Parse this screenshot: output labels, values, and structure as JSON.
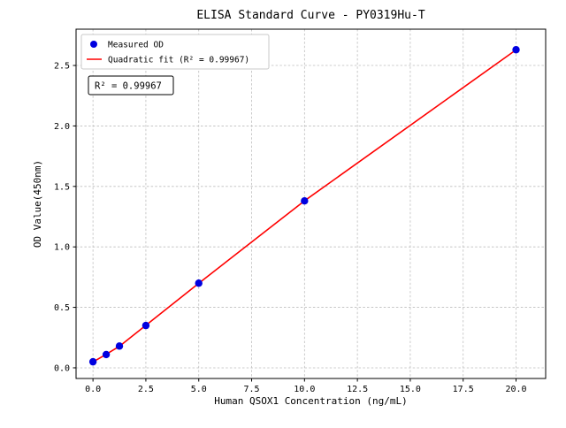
{
  "figure": {
    "background": "#ffffff",
    "axis_color": "#000000",
    "grid_color": "#bdbdbd"
  },
  "chart_data": {
    "type": "scatter",
    "title": "ELISA Standard Curve - PY0319Hu-T",
    "xlabel": "Human QSOX1 Concentration (ng/mL)",
    "ylabel": "OD Value(450nm)",
    "xlim": [
      -0.8,
      21.4
    ],
    "ylim": [
      -0.088,
      2.8
    ],
    "grid": true,
    "legend_position": "upper-left",
    "annotation": "R² = 0.99967",
    "xticks": {
      "values": [
        0,
        2.5,
        5,
        7.5,
        10,
        12.5,
        15,
        17.5,
        20
      ],
      "labels": [
        "0.0",
        "2.5",
        "5.0",
        "7.5",
        "10.0",
        "12.5",
        "15.0",
        "17.5",
        "20.0"
      ]
    },
    "yticks": {
      "values": [
        0,
        0.5,
        1,
        1.5,
        2,
        2.5
      ],
      "labels": [
        "0.0",
        "0.5",
        "1.0",
        "1.5",
        "2.0",
        "2.5"
      ]
    },
    "series": [
      {
        "name": "Measured OD",
        "type": "scatter",
        "color": "#0000e0",
        "x": [
          0,
          0.625,
          1.25,
          2.5,
          5,
          10,
          20
        ],
        "y": [
          0.05,
          0.11,
          0.18,
          0.35,
          0.7,
          1.38,
          2.63
        ]
      },
      {
        "name": "Quadratic fit (R² = 0.99967)",
        "type": "line",
        "color": "#ff0000",
        "x": [
          0,
          0.625,
          1.25,
          2.5,
          5,
          10,
          20
        ],
        "y": [
          0.049,
          0.112,
          0.178,
          0.352,
          0.699,
          1.381,
          2.629
        ]
      }
    ]
  }
}
